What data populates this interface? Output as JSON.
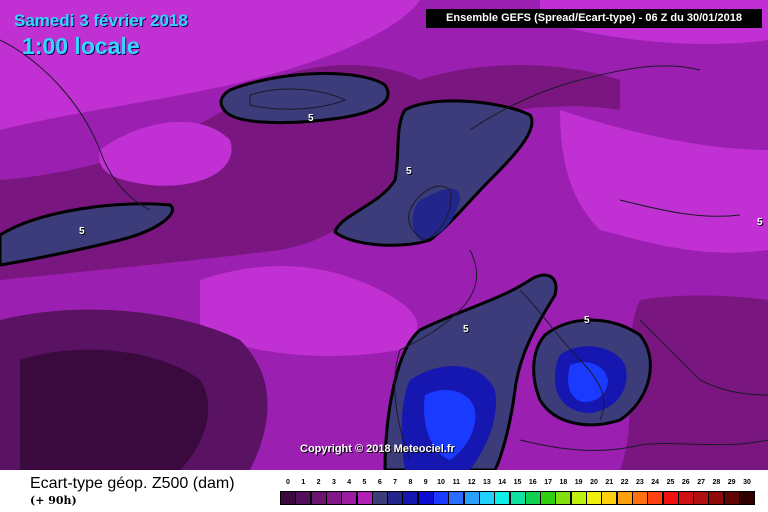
{
  "title": {
    "date": "Samedi 3 février 2018",
    "local_time": "1:00 locale"
  },
  "header": "Ensemble GEFS  (Spread/Ecart-type) - 06 Z du 30/01/2018",
  "copyright": "Copyright © 2018 Meteociel.fr",
  "contour_label": "5",
  "legend": {
    "title": "Ecart-type géop. Z500 (dam)",
    "lead_time": "(+ 90h)",
    "scale_values": [
      "0",
      "1",
      "2",
      "3",
      "4",
      "5",
      "6",
      "7",
      "8",
      "9",
      "10",
      "11",
      "12",
      "13",
      "14",
      "15",
      "16",
      "17",
      "18",
      "19",
      "20",
      "21",
      "22",
      "23",
      "24",
      "25",
      "26",
      "27",
      "28",
      "29",
      "30"
    ],
    "scale_colors": [
      "#3a0a3e",
      "#52105a",
      "#6a1470",
      "#821888",
      "#9a1ca0",
      "#b020b8",
      "#3c3c7a",
      "#22268c",
      "#1616b0",
      "#0c0cd0",
      "#1a3aff",
      "#2a6cff",
      "#2aa0ff",
      "#22d0ff",
      "#10f0e8",
      "#10e0a0",
      "#10d050",
      "#30d010",
      "#80e010",
      "#c0f010",
      "#f0f010",
      "#ffd010",
      "#ffa010",
      "#ff7010",
      "#ff4010",
      "#f01010",
      "#d01010",
      "#b01010",
      "#900808",
      "#600404",
      "#300000"
    ]
  },
  "colors": {
    "spread_0": "#3a0a3e",
    "spread_1": "#5a1262",
    "spread_2": "#7a1680",
    "spread_3": "#9b1fb0",
    "spread_4": "#c030d2",
    "spread_5": "#3c3c7a",
    "spread_6": "#22268c",
    "spread_7": "#1616b0",
    "spread_8": "#0c0cd0",
    "spread_9": "#1a3aff"
  }
}
